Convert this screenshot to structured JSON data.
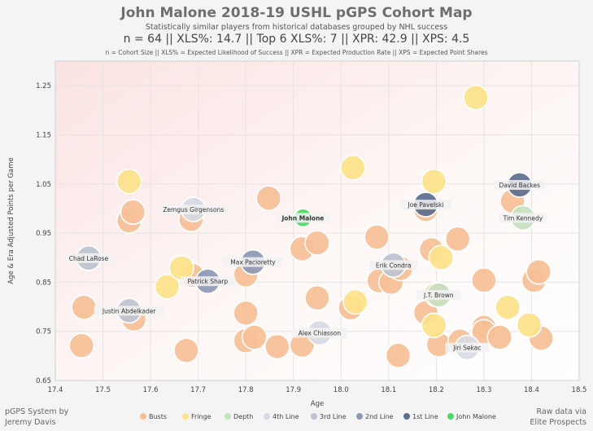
{
  "title": "John Malone 2018-19 USHL pGPS Cohort Map",
  "subtitle": "Statistically similar players from historical databases grouped by NHL success",
  "stats_line": "n = 64   ||   XLS%: 14.7   ||   Top 6 XLS%: 7   ||   XPR: 42.9   ||   XPS: 4.5",
  "legend_note": "n = Cohort Size || XLS% = Expected Likelihood of Success || XPR = Expected Production Rate || XPS = Expected Point Shares",
  "credit_left": [
    "pGPS System by",
    "Jeremy Davis"
  ],
  "credit_right": [
    "Raw data via",
    "Elite Prospects"
  ],
  "colors": {
    "Busts": "#f6bf96",
    "Fringe": "#fde28a",
    "Depth": "#c7e0c0",
    "4th Line": "#d6dae3",
    "3rd Line": "#bcc3d1",
    "2nd Line": "#8d99b5",
    "1st Line": "#5f6e8f",
    "John Malone": "#4cd964"
  },
  "chart_data": {
    "type": "scatter",
    "xlabel": "Age",
    "ylabel": "Age & Era Adjusted Points per Game",
    "xlim": [
      17.4,
      18.5
    ],
    "ylim": [
      0.65,
      1.3
    ],
    "xticks": [
      "17.4",
      "17.5",
      "17.6",
      "17.7",
      "17.8",
      "17.9",
      "18.0",
      "18.1",
      "18.2",
      "18.3",
      "18.4",
      "18.5"
    ],
    "yticks": [
      "0.65",
      "0.75",
      "0.85",
      "0.95",
      "1.05",
      "1.15",
      "1.25"
    ],
    "legend": [
      "Busts",
      "Fringe",
      "Depth",
      "4th Line",
      "3rd Line",
      "2nd Line",
      "1st Line",
      "John Malone"
    ],
    "points": [
      {
        "x": 17.455,
        "y": 0.721,
        "g": "Busts"
      },
      {
        "x": 17.46,
        "y": 0.799,
        "g": "Busts"
      },
      {
        "x": 17.555,
        "y": 0.975,
        "g": "Busts"
      },
      {
        "x": 17.563,
        "y": 0.993,
        "g": "Busts"
      },
      {
        "x": 17.565,
        "y": 0.775,
        "g": "Busts"
      },
      {
        "x": 17.675,
        "y": 0.711,
        "g": "Busts"
      },
      {
        "x": 17.685,
        "y": 0.978,
        "g": "Busts"
      },
      {
        "x": 17.687,
        "y": 0.864,
        "g": "Busts"
      },
      {
        "x": 17.8,
        "y": 0.865,
        "g": "Busts"
      },
      {
        "x": 17.8,
        "y": 0.787,
        "g": "Busts"
      },
      {
        "x": 17.8,
        "y": 0.731,
        "g": "Busts"
      },
      {
        "x": 17.818,
        "y": 0.738,
        "g": "Busts"
      },
      {
        "x": 17.848,
        "y": 1.021,
        "g": "Busts"
      },
      {
        "x": 17.866,
        "y": 0.719,
        "g": "Busts"
      },
      {
        "x": 17.918,
        "y": 0.918,
        "g": "Busts"
      },
      {
        "x": 17.918,
        "y": 0.722,
        "g": "Busts"
      },
      {
        "x": 17.95,
        "y": 0.93,
        "g": "Busts"
      },
      {
        "x": 17.95,
        "y": 0.818,
        "g": "Busts"
      },
      {
        "x": 18.02,
        "y": 0.798,
        "g": "Busts"
      },
      {
        "x": 18.075,
        "y": 0.942,
        "g": "Busts"
      },
      {
        "x": 18.08,
        "y": 0.853,
        "g": "Busts"
      },
      {
        "x": 18.105,
        "y": 0.85,
        "g": "Busts"
      },
      {
        "x": 18.125,
        "y": 0.878,
        "g": "Busts"
      },
      {
        "x": 18.12,
        "y": 0.701,
        "g": "Busts"
      },
      {
        "x": 18.178,
        "y": 0.998,
        "g": "Busts"
      },
      {
        "x": 18.178,
        "y": 0.788,
        "g": "Busts"
      },
      {
        "x": 18.19,
        "y": 0.916,
        "g": "Busts"
      },
      {
        "x": 18.2,
        "y": 0.825,
        "g": "Busts"
      },
      {
        "x": 18.205,
        "y": 0.723,
        "g": "Busts"
      },
      {
        "x": 18.245,
        "y": 0.938,
        "g": "Busts"
      },
      {
        "x": 18.25,
        "y": 0.73,
        "g": "Busts"
      },
      {
        "x": 18.3,
        "y": 0.854,
        "g": "Busts"
      },
      {
        "x": 18.3,
        "y": 0.758,
        "g": "Busts"
      },
      {
        "x": 18.3,
        "y": 0.749,
        "g": "Busts"
      },
      {
        "x": 18.333,
        "y": 0.738,
        "g": "Busts"
      },
      {
        "x": 18.36,
        "y": 1.015,
        "g": "Busts"
      },
      {
        "x": 18.405,
        "y": 0.854,
        "g": "Busts"
      },
      {
        "x": 18.415,
        "y": 0.871,
        "g": "Busts"
      },
      {
        "x": 18.42,
        "y": 0.736,
        "g": "Busts"
      },
      {
        "x": 17.555,
        "y": 1.055,
        "g": "Fringe"
      },
      {
        "x": 17.635,
        "y": 0.841,
        "g": "Fringe"
      },
      {
        "x": 17.665,
        "y": 0.879,
        "g": "Fringe"
      },
      {
        "x": 18.025,
        "y": 1.083,
        "g": "Fringe"
      },
      {
        "x": 18.03,
        "y": 0.81,
        "g": "Fringe"
      },
      {
        "x": 18.195,
        "y": 1.055,
        "g": "Fringe"
      },
      {
        "x": 18.195,
        "y": 0.762,
        "g": "Fringe"
      },
      {
        "x": 18.21,
        "y": 0.9,
        "g": "Fringe"
      },
      {
        "x": 18.283,
        "y": 1.226,
        "g": "Fringe"
      },
      {
        "x": 18.35,
        "y": 0.799,
        "g": "Fringe"
      },
      {
        "x": 18.395,
        "y": 0.763,
        "g": "Fringe"
      },
      {
        "x": 18.205,
        "y": 0.824,
        "g": "Depth",
        "label": "J.T. Brown"
      },
      {
        "x": 18.382,
        "y": 0.981,
        "g": "Depth",
        "label": "Tim Kennedy"
      },
      {
        "x": 17.69,
        "y": 0.998,
        "g": "4th Line",
        "label": "Zemgus Girgensons"
      },
      {
        "x": 17.955,
        "y": 0.747,
        "g": "4th Line",
        "label": "Alex Chiasson"
      },
      {
        "x": 18.265,
        "y": 0.717,
        "g": "4th Line",
        "label": "Jiri Sekac"
      },
      {
        "x": 17.47,
        "y": 0.899,
        "g": "3rd Line",
        "label": "Chad LaRose"
      },
      {
        "x": 17.555,
        "y": 0.792,
        "g": "3rd Line",
        "label": "Justin Abdelkader"
      },
      {
        "x": 18.11,
        "y": 0.885,
        "g": "3rd Line",
        "label": "Erik Condra"
      },
      {
        "x": 17.72,
        "y": 0.852,
        "g": "2nd Line",
        "label": "Patrick Sharp"
      },
      {
        "x": 17.815,
        "y": 0.891,
        "g": "2nd Line",
        "label": "Max Pacioretty"
      },
      {
        "x": 18.178,
        "y": 1.008,
        "g": "1st Line",
        "label": "Joe Pavelski"
      },
      {
        "x": 18.375,
        "y": 1.048,
        "g": "1st Line",
        "label": "David Backes"
      },
      {
        "x": 17.92,
        "y": 0.981,
        "g": "John Malone",
        "label": "John Malone"
      }
    ]
  }
}
